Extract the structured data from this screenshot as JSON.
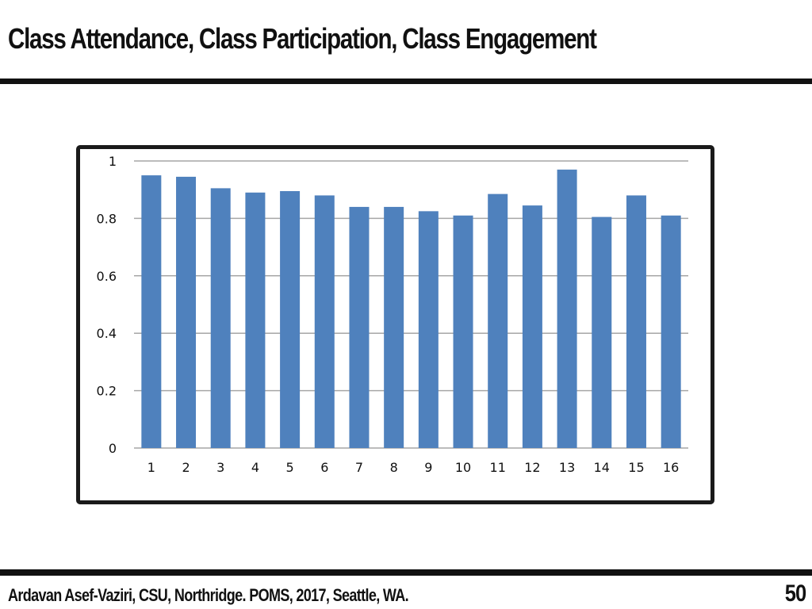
{
  "slide": {
    "title": "Class Attendance, Class Participation, Class Engagement",
    "footer": "Ardavan  Asef-Vaziri, CSU, Northridge. POMS, 2017, Seattle, WA.",
    "page_number": "50"
  },
  "colors": {
    "bar": "#4F81BD",
    "gridline": "#A6A6A6",
    "frame": "#1A1A1A",
    "text": "#111111"
  },
  "chart_data": {
    "type": "bar",
    "title": "",
    "xlabel": "",
    "ylabel": "",
    "categories": [
      "1",
      "2",
      "3",
      "4",
      "5",
      "6",
      "7",
      "8",
      "9",
      "10",
      "11",
      "12",
      "13",
      "14",
      "15",
      "16"
    ],
    "values": [
      0.95,
      0.945,
      0.905,
      0.89,
      0.895,
      0.88,
      0.84,
      0.84,
      0.825,
      0.81,
      0.885,
      0.845,
      0.97,
      0.805,
      0.88,
      0.81
    ],
    "ylim": [
      0,
      1
    ],
    "yticks": [
      0,
      0.2,
      0.4,
      0.6,
      0.8,
      1
    ],
    "ytick_labels": [
      "0",
      "0.2",
      "0.4",
      "0.6",
      "0.8",
      "1"
    ],
    "grid": true,
    "legend": "none"
  }
}
